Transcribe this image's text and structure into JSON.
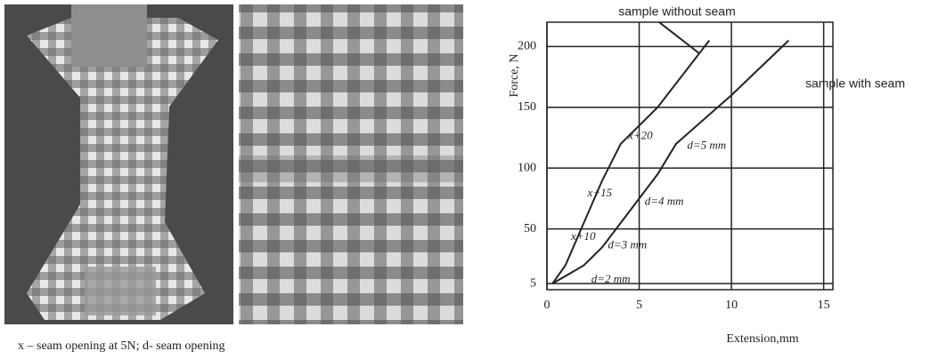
{
  "caption": "x – seam opening  at 5N; d- seam opening",
  "chart_data": {
    "type": "line",
    "xlabel": "Extension,mm",
    "ylabel": "Force, N",
    "xlim": [
      0,
      15.5
    ],
    "ylim": [
      0,
      220
    ],
    "xticks": [
      0,
      5,
      10,
      15
    ],
    "yticks": [
      5,
      50,
      100,
      150,
      200
    ],
    "grid": true,
    "series": [
      {
        "name": "sample without seam",
        "color": "#222222",
        "x": [
          0.3,
          1,
          2,
          3,
          4,
          6,
          8.8
        ],
        "values": [
          5,
          20,
          55,
          90,
          120,
          150,
          205
        ]
      },
      {
        "name": "sample with seam",
        "color": "#222222",
        "x": [
          0.3,
          2,
          3,
          4,
          5,
          6,
          7,
          10,
          13.1
        ],
        "values": [
          5,
          20,
          35,
          55,
          75,
          95,
          120,
          160,
          205
        ]
      }
    ],
    "annotations": [
      {
        "text": "x+20",
        "x": 4.4,
        "y": 126
      },
      {
        "text": "d=5 mm",
        "x": 7.6,
        "y": 118
      },
      {
        "text": "x+15",
        "x": 2.2,
        "y": 79
      },
      {
        "text": "d=4 mm",
        "x": 5.3,
        "y": 72
      },
      {
        "text": "x+10",
        "x": 1.3,
        "y": 43
      },
      {
        "text": "d=3 mm",
        "x": 3.3,
        "y": 36
      },
      {
        "text": "d=2 mm",
        "x": 2.4,
        "y": 8
      }
    ]
  }
}
